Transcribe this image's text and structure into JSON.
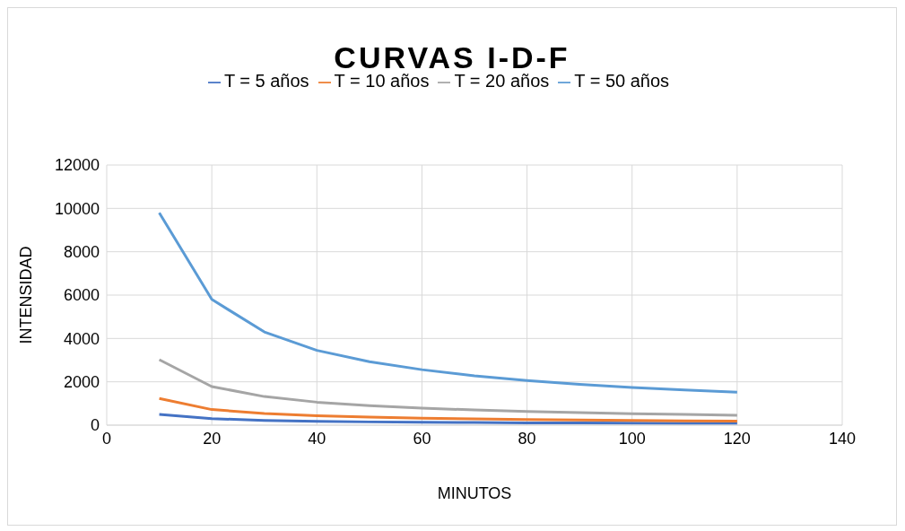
{
  "chart_data": {
    "type": "line",
    "title": "CURVAS I-D-F",
    "xlabel": "MINUTOS",
    "ylabel": "INTENSIDAD",
    "x": [
      10,
      20,
      30,
      40,
      50,
      60,
      70,
      80,
      90,
      100,
      110,
      120
    ],
    "series": [
      {
        "name": "T = 5 años",
        "color": "#4472c4",
        "values": [
          500,
          300,
          220,
          180,
          150,
          130,
          120,
          100,
          100,
          90,
          80,
          80
        ]
      },
      {
        "name": "T = 10 años",
        "color": "#ed7d31",
        "values": [
          1230,
          720,
          540,
          430,
          370,
          320,
          290,
          260,
          240,
          220,
          200,
          190
        ]
      },
      {
        "name": "T = 20 años",
        "color": "#a5a5a5",
        "values": [
          3020,
          1780,
          1320,
          1060,
          900,
          790,
          700,
          630,
          580,
          530,
          500,
          460
        ]
      },
      {
        "name": "T = 50 años",
        "color": "#5b9bd5",
        "values": [
          9800,
          5800,
          4300,
          3450,
          2930,
          2560,
          2280,
          2060,
          1880,
          1740,
          1620,
          1520
        ]
      }
    ],
    "xlim": [
      0,
      140
    ],
    "xticks": [
      0,
      20,
      40,
      60,
      80,
      100,
      120,
      140
    ],
    "ylim": [
      0,
      12000
    ],
    "yticks": [
      0,
      2000,
      4000,
      6000,
      8000,
      10000,
      12000
    ],
    "grid": true,
    "legend": "top",
    "marker": "none",
    "line_style": "solid"
  }
}
